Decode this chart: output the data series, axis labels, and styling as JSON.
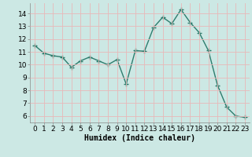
{
  "x": [
    0,
    1,
    2,
    3,
    4,
    5,
    6,
    7,
    8,
    9,
    10,
    11,
    12,
    13,
    14,
    15,
    16,
    17,
    18,
    19,
    20,
    21,
    22,
    23
  ],
  "y": [
    11.5,
    10.9,
    10.7,
    10.6,
    9.8,
    10.3,
    10.6,
    10.3,
    10.0,
    10.4,
    8.5,
    11.1,
    11.05,
    12.9,
    13.7,
    13.2,
    14.3,
    13.3,
    12.5,
    11.1,
    8.4,
    6.7,
    6.0,
    5.9
  ],
  "line_color": "#2e7d6e",
  "marker": "+",
  "marker_size": 4,
  "xlabel": "Humidex (Indice chaleur)",
  "ylim": [
    5.5,
    14.8
  ],
  "xlim": [
    -0.5,
    23.5
  ],
  "yticks": [
    6,
    7,
    8,
    9,
    10,
    11,
    12,
    13,
    14
  ],
  "xticks": [
    0,
    1,
    2,
    3,
    4,
    5,
    6,
    7,
    8,
    9,
    10,
    11,
    12,
    13,
    14,
    15,
    16,
    17,
    18,
    19,
    20,
    21,
    22,
    23
  ],
  "bg_color": "#cce8e4",
  "grid_color": "#e8b8b8",
  "font_size_label": 7,
  "tick_font_size": 6.5,
  "line_width": 1.0
}
